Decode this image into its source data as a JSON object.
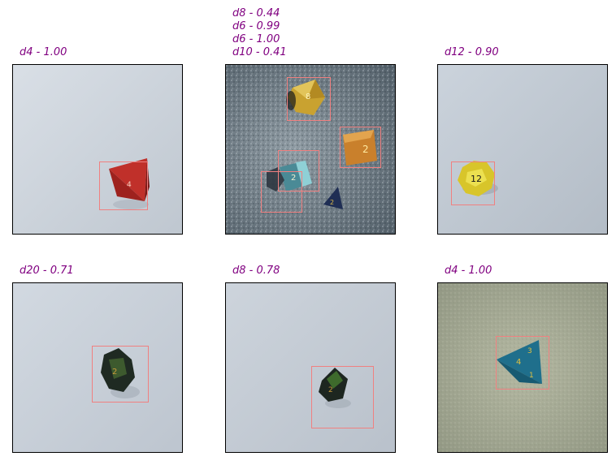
{
  "panels": [
    {
      "caption": "d4 - 1.00"
    },
    {
      "caption": "d8 - 0.44\nd6 - 0.99\nd6 - 1.00\nd10 - 0.41"
    },
    {
      "caption": "d12 - 0.90"
    },
    {
      "caption": "d20 - 0.71"
    },
    {
      "caption": "d8 - 0.78"
    },
    {
      "caption": "d4 - 1.00"
    }
  ],
  "colors": {
    "caption": "#800080",
    "box": "#f08080",
    "paper": "#c8d0da",
    "granite": "#6a7a84",
    "stone": "#a7ac94"
  },
  "icons": [
    "d4-die-icon",
    "d8-die-icon",
    "d6-die-icon",
    "d10-die-icon",
    "d12-die-icon",
    "d20-die-icon"
  ]
}
